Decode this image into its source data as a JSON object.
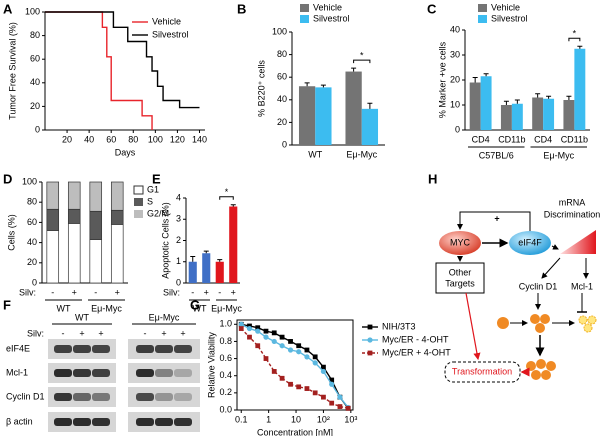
{
  "chart_data": [
    {
      "panel": "A",
      "type": "line",
      "xlabel": "Days",
      "ylabel": "Tumor Free Survival (%)",
      "xlim": [
        0,
        145
      ],
      "xticks": [
        20,
        40,
        60,
        80,
        100,
        120,
        140
      ],
      "ylim": [
        0,
        100
      ],
      "yticks": [
        0,
        20,
        40,
        60,
        80,
        100
      ],
      "legend": "upper right",
      "series": [
        {
          "name": "Vehicle",
          "color": "#e8242b",
          "x": [
            0,
            52,
            52,
            56,
            56,
            60,
            60,
            88,
            88,
            97,
            97
          ],
          "values": [
            100,
            100,
            87,
            87,
            62,
            62,
            25,
            25,
            12,
            12,
            0
          ]
        },
        {
          "name": "Silvestrol",
          "color": "#000000",
          "x": [
            0,
            62,
            62,
            75,
            75,
            92,
            92,
            97,
            97,
            102,
            102,
            107,
            107,
            122,
            122,
            140
          ],
          "values": [
            100,
            100,
            87,
            87,
            75,
            75,
            62,
            62,
            50,
            50,
            37,
            37,
            25,
            25,
            19,
            19
          ]
        }
      ]
    },
    {
      "panel": "B",
      "type": "bar",
      "ylabel": "% B220⁺ cells",
      "categories": [
        "WT",
        "Eμ-Myc"
      ],
      "ylim": [
        0,
        100
      ],
      "yticks": [
        0,
        20,
        40,
        60,
        80,
        100
      ],
      "legend": "top",
      "annotation": "*",
      "series": [
        {
          "name": "Vehicle",
          "color": "#747474",
          "values": [
            52,
            65
          ],
          "errors": [
            3,
            3
          ]
        },
        {
          "name": "Silvestrol",
          "color": "#3cbcf0",
          "values": [
            51,
            32
          ],
          "errors": [
            2,
            5
          ]
        }
      ]
    },
    {
      "panel": "C",
      "type": "bar",
      "ylabel": "% Marker +ve cells",
      "categories": [
        "CD4",
        "CD11b",
        "CD4",
        "CD11b"
      ],
      "groups": [
        "C57BL/6",
        "Eμ-Myc"
      ],
      "ylim": [
        0,
        40
      ],
      "yticks": [
        0,
        10,
        20,
        30,
        40
      ],
      "legend": "top",
      "annotation": "*",
      "series": [
        {
          "name": "Vehicle",
          "color": "#747474",
          "values": [
            19,
            10,
            13,
            12
          ],
          "errors": [
            2,
            1.5,
            1.5,
            1.5
          ]
        },
        {
          "name": "Silvestrol",
          "color": "#3cbcf0",
          "values": [
            21.5,
            10.5,
            12.5,
            32.5
          ],
          "errors": [
            1,
            1.5,
            1,
            1
          ]
        }
      ]
    },
    {
      "panel": "D",
      "type": "stacked_bar",
      "ylabel": "Cells (%)",
      "row_label": "Silv:",
      "categories": [
        "-",
        "+",
        "-",
        "+"
      ],
      "groups": [
        "WT",
        "Eμ-Myc"
      ],
      "ylim": [
        0,
        100
      ],
      "yticks": [
        0,
        20,
        40,
        60,
        80,
        100
      ],
      "legend": "right",
      "series": [
        {
          "name": "G1",
          "color": "#ffffff",
          "values": [
            52,
            59,
            43,
            58
          ]
        },
        {
          "name": "S",
          "color": "#5a5a5a",
          "values": [
            21,
            14,
            28,
            14
          ]
        },
        {
          "name": "G2/M",
          "color": "#bdbdbd",
          "values": [
            27,
            27,
            29,
            28
          ]
        }
      ]
    },
    {
      "panel": "E",
      "type": "bar",
      "ylabel": "Apoptotic Cells (%)",
      "row_label": "Silv:",
      "categories": [
        "-",
        "+",
        "-",
        "+"
      ],
      "groups": [
        "WT",
        "Eμ-Myc"
      ],
      "ylim": [
        0,
        4
      ],
      "yticks": [
        0,
        1,
        2,
        3,
        4
      ],
      "annotation": "*",
      "colors": [
        "#3f6fc6",
        "#3f6fc6",
        "#e0161d",
        "#e0161d"
      ],
      "values": [
        1.0,
        1.4,
        1.0,
        3.6
      ],
      "errors": [
        0.25,
        0.1,
        0.1,
        0.08
      ]
    },
    {
      "panel": "G",
      "type": "line",
      "xscale": "log",
      "xlabel": "Concentration [nM]",
      "ylabel": "Relative Viability",
      "xlim": [
        0.07,
        1200
      ],
      "xticks": [
        0.1,
        1,
        10,
        {
          "value": 100,
          "label": "10²"
        },
        {
          "value": 1000,
          "label": "10³"
        }
      ],
      "ylim": [
        0,
        1.05
      ],
      "yticks": [
        {
          "value": 0,
          "label": "0.0"
        },
        0.2,
        0.4,
        0.6,
        0.8,
        {
          "value": 1,
          "label": "1.0"
        }
      ],
      "legend": "right",
      "x": [
        0.1,
        0.2,
        0.4,
        0.8,
        1.6,
        3.1,
        6.3,
        12.5,
        25,
        50,
        100,
        200,
        400,
        800
      ],
      "series": [
        {
          "name": "NIH/3T3",
          "color": "#000000",
          "marker": "square",
          "linestyle": "solid",
          "values": [
            1.0,
            0.98,
            0.96,
            0.92,
            0.9,
            0.85,
            0.8,
            0.75,
            0.7,
            0.62,
            0.5,
            0.35,
            0.15,
            0.02
          ]
        },
        {
          "name": "Myc/ER - 4-OHT",
          "color": "#5bb8e0",
          "marker": "circle",
          "linestyle": "solid",
          "values": [
            1.0,
            0.95,
            0.92,
            0.85,
            0.8,
            0.75,
            0.7,
            0.68,
            0.62,
            0.55,
            0.45,
            0.3,
            0.15,
            0.03
          ]
        },
        {
          "name": "Myc/ER + 4-OHT",
          "color": "#a3201f",
          "marker": "square",
          "linestyle": "dashed",
          "values": [
            0.95,
            0.85,
            0.75,
            0.6,
            0.45,
            0.37,
            0.3,
            0.27,
            0.25,
            0.2,
            0.15,
            0.08,
            0.04,
            0.02
          ]
        }
      ]
    }
  ],
  "blot": {
    "panel": "F",
    "row_label": "Silv:",
    "groups": [
      "WT",
      "Eμ-Myc"
    ],
    "lanes": [
      "-",
      "+",
      "+",
      "-",
      "+",
      "+"
    ],
    "rows": [
      "eIF4E",
      "Mcl-1",
      "Cyclin D1",
      "β actin"
    ]
  },
  "diagram": {
    "panel": "H",
    "myc": "MYC",
    "eif4f": "eIF4F",
    "feedback": "+",
    "mrna": [
      "mRNA",
      "Discrimination"
    ],
    "other": [
      "Other",
      "Targets"
    ],
    "cyclin": "Cyclin D1",
    "mcl": "Mcl-1",
    "transformation": "Transformation"
  }
}
